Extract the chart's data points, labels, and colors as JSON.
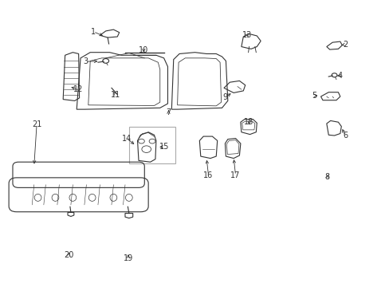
{
  "bg_color": "#ffffff",
  "line_color": "#333333",
  "fig_width": 4.89,
  "fig_height": 3.6,
  "dpi": 100,
  "label_positions": {
    "1": [
      0.238,
      0.893,
      0.268,
      0.875
    ],
    "2": [
      0.888,
      0.848,
      0.878,
      0.845
    ],
    "3": [
      0.218,
      0.788,
      0.255,
      0.789
    ],
    "4": [
      0.875,
      0.738,
      0.862,
      0.738
    ],
    "5": [
      0.808,
      0.668,
      0.822,
      0.668
    ],
    "6": [
      0.888,
      0.528,
      0.878,
      0.558
    ],
    "7": [
      0.432,
      0.608,
      0.432,
      0.625
    ],
    "8": [
      0.842,
      0.382,
      0.845,
      0.398
    ],
    "9": [
      0.578,
      0.662,
      0.598,
      0.68
    ],
    "10": [
      0.368,
      0.828,
      0.368,
      0.82
    ],
    "11": [
      0.295,
      0.672,
      0.29,
      0.682
    ],
    "12": [
      0.2,
      0.69,
      0.175,
      0.7
    ],
    "13": [
      0.635,
      0.882,
      0.64,
      0.868
    ],
    "14": [
      0.325,
      0.518,
      0.348,
      0.492
    ],
    "15": [
      0.422,
      0.488,
      0.403,
      0.488
    ],
    "16": [
      0.535,
      0.388,
      0.53,
      0.45
    ],
    "17": [
      0.605,
      0.388,
      0.6,
      0.452
    ],
    "18": [
      0.64,
      0.575,
      0.638,
      0.558
    ],
    "19": [
      0.328,
      0.098,
      0.328,
      0.118
    ],
    "20": [
      0.175,
      0.108,
      0.178,
      0.125
    ],
    "21": [
      0.092,
      0.568,
      0.085,
      0.42
    ]
  }
}
